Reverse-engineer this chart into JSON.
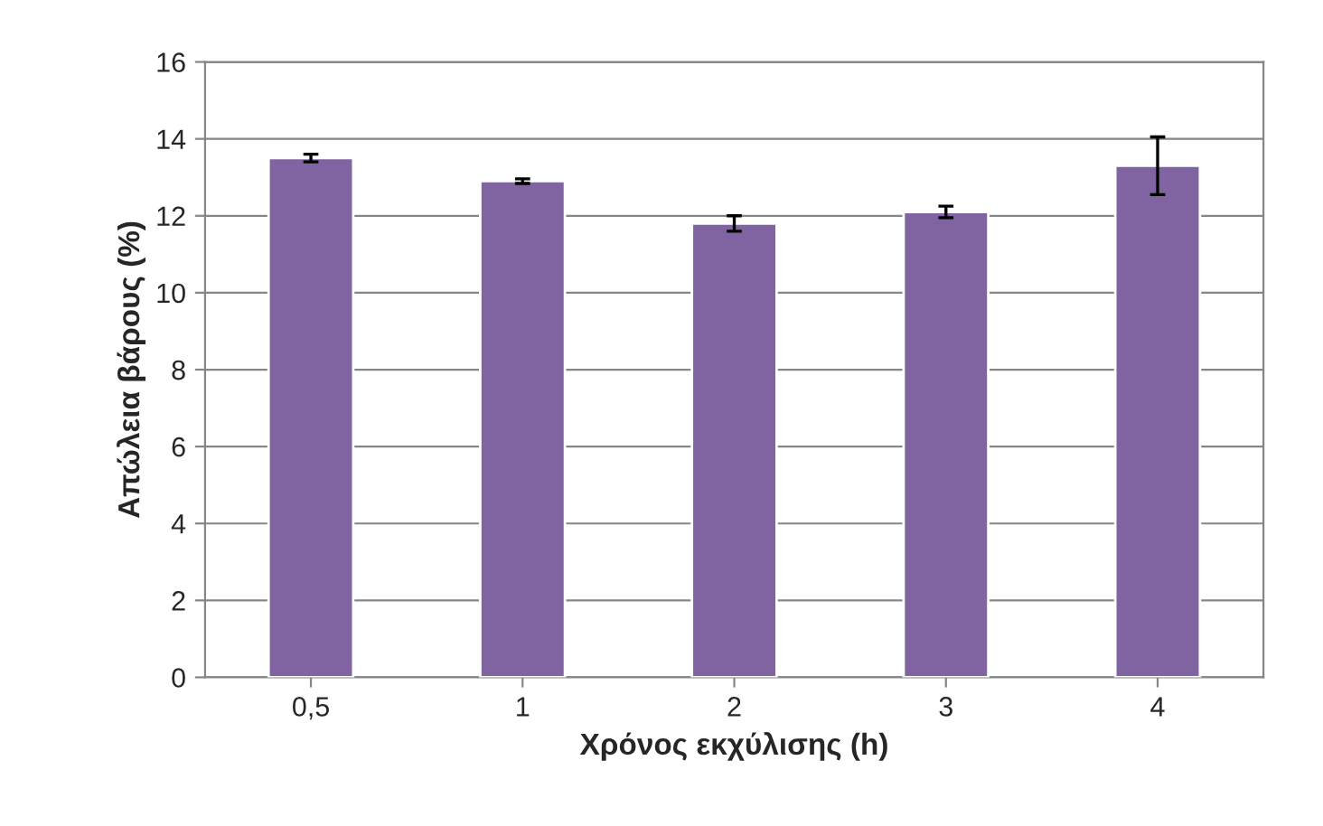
{
  "chart_data": {
    "type": "bar",
    "xlabel": "Χρόνος εκχύλισης (h)",
    "ylabel": "Απώλεια βάρους (%)",
    "categories": [
      "0,5",
      "1",
      "2",
      "3",
      "4"
    ],
    "values": [
      13.5,
      12.9,
      11.8,
      12.1,
      13.3
    ],
    "errors": [
      0.1,
      0.06,
      0.2,
      0.15,
      0.75
    ],
    "color": "#8064a2",
    "ylim": [
      0,
      16
    ],
    "yticks": [
      0,
      2,
      4,
      6,
      8,
      10,
      12,
      14,
      16
    ],
    "grid": "y"
  }
}
